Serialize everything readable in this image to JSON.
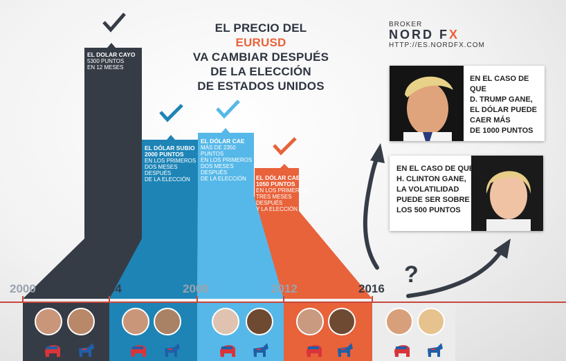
{
  "title": {
    "line1_pre": "EL PRECIO DEL ",
    "line1_accent": "EURUSD",
    "line2": "VA CAMBIAR DESPUÉS",
    "line3": "DE LA ELECCIÓN",
    "line4": "DE ESTADOS UNIDOS"
  },
  "broker": {
    "label": "BROKER",
    "logo_main": "NORD F",
    "logo_accent": "X",
    "url": "HTTP://ES.NORDFX.COM"
  },
  "bars": [
    {
      "period": "2000",
      "color": "#363c46",
      "lines": [
        "EL DOLAR CAYO",
        "5300 PUNTOS",
        "EN 12 MESES"
      ]
    },
    {
      "period": "2004",
      "color": "#1e84b6",
      "lines": [
        "EL DÓLAR SUBIO",
        "2000 PUNTOS",
        "EN LOS PRIMEROS",
        "DOS MESES",
        "DESPUÉS",
        "DE LA ELECCIÓN"
      ]
    },
    {
      "period": "2008",
      "color": "#56b8e8",
      "lines": [
        "EL DÓLAR CAE",
        "MÁS DE 2350",
        "PUNTOS",
        "EN LOS PRIMEROS",
        "DOS MESES DESPUÉS",
        "DE LA ELECCIÓN"
      ]
    },
    {
      "period": "2012",
      "color": "#e8623a",
      "lines": [
        "EL DÓLAR CAE",
        "1050 PUNTOS",
        "EN LOS PRIMEROS",
        "TRES MESES DESPUÉS",
        "Y LA ELECCIÓN"
      ]
    }
  ],
  "years": [
    "2000",
    "2004",
    "2008",
    "2012",
    "2016"
  ],
  "question_mark": "?",
  "cards": {
    "trump": {
      "lines": [
        "EN EL CASO DE QUE",
        "D. TRUMP GANE,",
        "EL DÓLAR PUEDE",
        "CAER MÁS",
        "DE 1000 PUNTOS"
      ]
    },
    "clinton": {
      "lines": [
        "EN EL CASO DE QUE",
        "H. CLINTON GANE,",
        "LA VOLATILIDAD",
        "PUEDE SER SOBRE",
        "LOS 500 PUNTOS"
      ]
    }
  },
  "colors": {
    "dark": "#363c46",
    "blue": "#1e84b6",
    "light_blue": "#56b8e8",
    "orange": "#e8623a",
    "republican_red": "#d9343a",
    "democrat_blue": "#1f5fa8"
  },
  "icons": [
    "check-icon",
    "republican-elephant-icon",
    "democrat-donkey-icon",
    "curved-arrow-icon"
  ]
}
